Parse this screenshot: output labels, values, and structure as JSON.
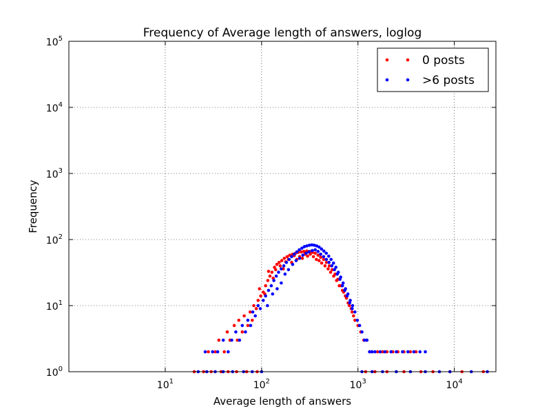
{
  "chart_data": {
    "type": "scatter",
    "title": "Frequency of Average length of answers, loglog",
    "xlabel": "Average length of answers",
    "ylabel": "Frequency",
    "xscale": "log",
    "yscale": "log",
    "xlim": [
      1,
      27000
    ],
    "ylim": [
      1,
      100000
    ],
    "grid": true,
    "legend_position": "upper right",
    "x_ticks": [
      {
        "value": 10,
        "base": "10",
        "exp": "1"
      },
      {
        "value": 100,
        "base": "10",
        "exp": "2"
      },
      {
        "value": 1000,
        "base": "10",
        "exp": "3"
      },
      {
        "value": 10000,
        "base": "10",
        "exp": "4"
      }
    ],
    "y_ticks": [
      {
        "value": 1,
        "base": "10",
        "exp": "0"
      },
      {
        "value": 10,
        "base": "10",
        "exp": "1"
      },
      {
        "value": 100,
        "base": "10",
        "exp": "2"
      },
      {
        "value": 1000,
        "base": "10",
        "exp": "3"
      },
      {
        "value": 10000,
        "base": "10",
        "exp": "4"
      },
      {
        "value": 100000,
        "base": "10",
        "exp": "5"
      }
    ],
    "series": [
      {
        "name": "0 posts",
        "color": "#ff0000",
        "points": [
          [
            20,
            1
          ],
          [
            25,
            1
          ],
          [
            30,
            1
          ],
          [
            38,
            1
          ],
          [
            45,
            1
          ],
          [
            55,
            1
          ],
          [
            70,
            1
          ],
          [
            90,
            1
          ],
          [
            28,
            2
          ],
          [
            33,
            2
          ],
          [
            36,
            3
          ],
          [
            41,
            2
          ],
          [
            44,
            4
          ],
          [
            47,
            3
          ],
          [
            52,
            5
          ],
          [
            56,
            3
          ],
          [
            58,
            6
          ],
          [
            63,
            4
          ],
          [
            66,
            7
          ],
          [
            72,
            5
          ],
          [
            76,
            8
          ],
          [
            80,
            6
          ],
          [
            83,
            10
          ],
          [
            88,
            9
          ],
          [
            92,
            12
          ],
          [
            98,
            14
          ],
          [
            104,
            16
          ],
          [
            110,
            20
          ],
          [
            116,
            24
          ],
          [
            122,
            28
          ],
          [
            128,
            32
          ],
          [
            136,
            38
          ],
          [
            144,
            42
          ],
          [
            152,
            45
          ],
          [
            162,
            48
          ],
          [
            172,
            52
          ],
          [
            184,
            55
          ],
          [
            196,
            58
          ],
          [
            210,
            60
          ],
          [
            225,
            62
          ],
          [
            240,
            64
          ],
          [
            258,
            65
          ],
          [
            275,
            66
          ],
          [
            295,
            67
          ],
          [
            315,
            66
          ],
          [
            338,
            64
          ],
          [
            360,
            62
          ],
          [
            385,
            58
          ],
          [
            410,
            54
          ],
          [
            440,
            50
          ],
          [
            470,
            45
          ],
          [
            505,
            40
          ],
          [
            540,
            35
          ],
          [
            580,
            30
          ],
          [
            620,
            25
          ],
          [
            665,
            20
          ],
          [
            710,
            16
          ],
          [
            760,
            13
          ],
          [
            815,
            10
          ],
          [
            870,
            8
          ],
          [
            930,
            6
          ],
          [
            1000,
            5
          ],
          [
            1070,
            4
          ],
          [
            1150,
            3
          ],
          [
            1230,
            3
          ],
          [
            1320,
            2
          ],
          [
            95,
            18
          ],
          [
            108,
            15
          ],
          [
            118,
            33
          ],
          [
            132,
            26
          ],
          [
            140,
            35
          ],
          [
            156,
            40
          ],
          [
            168,
            36
          ],
          [
            178,
            46
          ],
          [
            190,
            50
          ],
          [
            205,
            45
          ],
          [
            218,
            57
          ],
          [
            232,
            50
          ],
          [
            248,
            55
          ],
          [
            265,
            52
          ],
          [
            283,
            60
          ],
          [
            300,
            56
          ],
          [
            320,
            60
          ],
          [
            345,
            55
          ],
          [
            370,
            50
          ],
          [
            395,
            48
          ],
          [
            420,
            44
          ],
          [
            455,
            40
          ],
          [
            490,
            36
          ],
          [
            520,
            32
          ],
          [
            560,
            28
          ],
          [
            600,
            24
          ],
          [
            640,
            20
          ],
          [
            690,
            17
          ],
          [
            740,
            14
          ],
          [
            790,
            11
          ],
          [
            850,
            9
          ],
          [
            900,
            7
          ],
          [
            1400,
            2
          ],
          [
            1600,
            2
          ],
          [
            1800,
            2
          ],
          [
            2000,
            2
          ],
          [
            2300,
            2
          ],
          [
            2600,
            2
          ],
          [
            3000,
            2
          ],
          [
            3500,
            2
          ],
          [
            4000,
            2
          ],
          [
            1200,
            1
          ],
          [
            1500,
            1
          ],
          [
            2000,
            1
          ],
          [
            3000,
            1
          ],
          [
            4500,
            1
          ],
          [
            6000,
            1
          ],
          [
            9000,
            1
          ],
          [
            12000,
            1
          ],
          [
            20000,
            1
          ]
        ]
      },
      {
        "name": ">6 posts",
        "color": "#0000ff",
        "points": [
          [
            22,
            1
          ],
          [
            27,
            1
          ],
          [
            33,
            1
          ],
          [
            40,
            1
          ],
          [
            50,
            1
          ],
          [
            65,
            1
          ],
          [
            80,
            1
          ],
          [
            100,
            1
          ],
          [
            26,
            2
          ],
          [
            31,
            2
          ],
          [
            35,
            2
          ],
          [
            40,
            3
          ],
          [
            45,
            2
          ],
          [
            49,
            3
          ],
          [
            54,
            4
          ],
          [
            59,
            3
          ],
          [
            63,
            5
          ],
          [
            68,
            4
          ],
          [
            72,
            6
          ],
          [
            77,
            5
          ],
          [
            81,
            8
          ],
          [
            86,
            7
          ],
          [
            92,
            10
          ],
          [
            97,
            9
          ],
          [
            104,
            12
          ],
          [
            110,
            14
          ],
          [
            118,
            17
          ],
          [
            126,
            20
          ],
          [
            134,
            24
          ],
          [
            142,
            28
          ],
          [
            150,
            32
          ],
          [
            160,
            36
          ],
          [
            170,
            40
          ],
          [
            181,
            45
          ],
          [
            193,
            50
          ],
          [
            205,
            55
          ],
          [
            218,
            60
          ],
          [
            232,
            65
          ],
          [
            246,
            70
          ],
          [
            262,
            74
          ],
          [
            278,
            78
          ],
          [
            295,
            80
          ],
          [
            313,
            82
          ],
          [
            332,
            83
          ],
          [
            352,
            82
          ],
          [
            373,
            80
          ],
          [
            395,
            77
          ],
          [
            418,
            72
          ],
          [
            443,
            67
          ],
          [
            469,
            62
          ],
          [
            497,
            56
          ],
          [
            526,
            50
          ],
          [
            557,
            44
          ],
          [
            590,
            38
          ],
          [
            625,
            32
          ],
          [
            662,
            27
          ],
          [
            701,
            22
          ],
          [
            742,
            18
          ],
          [
            786,
            15
          ],
          [
            832,
            12
          ],
          [
            880,
            10
          ],
          [
            930,
            8
          ],
          [
            985,
            6
          ],
          [
            1040,
            5
          ],
          [
            1100,
            4
          ],
          [
            1170,
            3
          ],
          [
            1240,
            3
          ],
          [
            1320,
            2
          ],
          [
            1400,
            2
          ],
          [
            115,
            10
          ],
          [
            130,
            15
          ],
          [
            145,
            18
          ],
          [
            160,
            22
          ],
          [
            175,
            30
          ],
          [
            190,
            35
          ],
          [
            210,
            42
          ],
          [
            228,
            48
          ],
          [
            248,
            52
          ],
          [
            268,
            58
          ],
          [
            290,
            62
          ],
          [
            310,
            65
          ],
          [
            335,
            68
          ],
          [
            360,
            70
          ],
          [
            385,
            66
          ],
          [
            410,
            60
          ],
          [
            440,
            55
          ],
          [
            470,
            50
          ],
          [
            500,
            45
          ],
          [
            535,
            40
          ],
          [
            570,
            35
          ],
          [
            610,
            30
          ],
          [
            650,
            25
          ],
          [
            690,
            20
          ],
          [
            730,
            17
          ],
          [
            770,
            14
          ],
          [
            820,
            11
          ],
          [
            870,
            9
          ],
          [
            1500,
            2
          ],
          [
            1700,
            2
          ],
          [
            1900,
            2
          ],
          [
            2200,
            2
          ],
          [
            2500,
            2
          ],
          [
            2900,
            2
          ],
          [
            3300,
            2
          ],
          [
            3800,
            2
          ],
          [
            4400,
            2
          ],
          [
            5000,
            2
          ],
          [
            1100,
            1
          ],
          [
            1400,
            1
          ],
          [
            1800,
            1
          ],
          [
            2500,
            1
          ],
          [
            3500,
            1
          ],
          [
            5000,
            1
          ],
          [
            7000,
            1
          ],
          [
            9000,
            1
          ],
          [
            15000,
            1
          ],
          [
            22000,
            1
          ]
        ]
      }
    ]
  }
}
